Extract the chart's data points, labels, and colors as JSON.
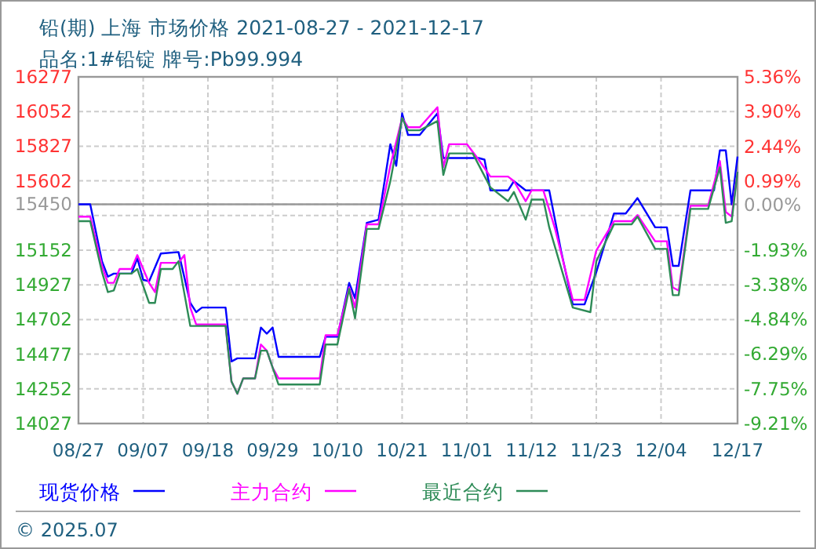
{
  "chart_data": {
    "type": "line",
    "title": "铅(期) 上海 市场价格 2021-08-27 - 2021-12-17",
    "subtitle": "品名:1#铅锭 牌号:Pb99.994",
    "xlim": [
      "2021-08-27",
      "2021-12-17"
    ],
    "xticks": [
      {
        "value": "2021-08-27",
        "label": "08/27"
      },
      {
        "value": "2021-09-07",
        "label": "09/07"
      },
      {
        "value": "2021-09-18",
        "label": "09/18"
      },
      {
        "value": "2021-09-29",
        "label": "09/29"
      },
      {
        "value": "2021-10-10",
        "label": "10/10"
      },
      {
        "value": "2021-10-21",
        "label": "10/21"
      },
      {
        "value": "2021-11-01",
        "label": "11/01"
      },
      {
        "value": "2021-11-12",
        "label": "11/12"
      },
      {
        "value": "2021-11-23",
        "label": "11/23"
      },
      {
        "value": "2021-12-04",
        "label": "12/04"
      },
      {
        "value": "2021-12-17",
        "label": "12/17"
      }
    ],
    "ylim": [
      14027,
      16277
    ],
    "yticks": [
      16277,
      16052,
      15827,
      15602,
      15450,
      {
        "value": 15377,
        "label": null
      },
      15152,
      14927,
      14702,
      14477,
      14252,
      14027
    ],
    "y2lim": [
      -9.21,
      5.36
    ],
    "y2ticks": [
      {
        "value": 5.36,
        "label": "5.36%"
      },
      {
        "value": 3.9,
        "label": "3.90%"
      },
      {
        "value": 2.44,
        "label": "2.44%"
      },
      {
        "value": 0.99,
        "label": "0.99%"
      },
      {
        "value": 0,
        "label": "0.00%"
      },
      {
        "value": -1.93,
        "label": "-1.93%"
      },
      {
        "value": -3.38,
        "label": "-3.38%"
      },
      {
        "value": -4.84,
        "label": "-4.84%"
      },
      {
        "value": -6.29,
        "label": "-6.29%"
      },
      {
        "value": -7.75,
        "label": "-7.75%"
      },
      {
        "value": -9.21,
        "label": "-9.21%"
      }
    ],
    "ref_lines": [
      {
        "axis": "y",
        "value": 15450,
        "color": "#999999"
      }
    ],
    "grid": true,
    "legend": "bottom",
    "marker": "none",
    "line_style": "solid",
    "annotations": [
      "© 2025.07"
    ],
    "series": [
      {
        "name": "现货价格",
        "color": "#0000ff",
        "x": [
          "2021-08-27",
          "2021-08-29",
          "2021-08-31",
          "2021-09-01",
          "2021-09-02",
          "2021-09-05",
          "2021-09-06",
          "2021-09-07",
          "2021-09-08",
          "2021-09-10",
          "2021-09-13",
          "2021-09-15",
          "2021-09-16",
          "2021-09-17",
          "2021-09-21",
          "2021-09-22",
          "2021-09-23",
          "2021-09-26",
          "2021-09-27",
          "2021-09-28",
          "2021-09-29",
          "2021-09-30",
          "2021-10-07",
          "2021-10-08",
          "2021-10-10",
          "2021-10-12",
          "2021-10-13",
          "2021-10-15",
          "2021-10-17",
          "2021-10-19",
          "2021-10-20",
          "2021-10-21",
          "2021-10-22",
          "2021-10-24",
          "2021-10-27",
          "2021-10-28",
          "2021-11-03",
          "2021-11-04",
          "2021-11-05",
          "2021-11-08",
          "2021-11-09",
          "2021-11-11",
          "2021-11-15",
          "2021-11-17",
          "2021-11-19",
          "2021-11-21",
          "2021-11-23",
          "2021-11-26",
          "2021-11-28",
          "2021-11-30",
          "2021-12-03",
          "2021-12-05",
          "2021-12-06",
          "2021-12-07",
          "2021-12-09",
          "2021-12-13",
          "2021-12-14",
          "2021-12-15",
          "2021-12-16",
          "2021-12-17"
        ],
        "values": [
          15450,
          15450,
          15080,
          14980,
          15000,
          15000,
          15100,
          14960,
          14950,
          15130,
          15140,
          14810,
          14750,
          14780,
          14780,
          14430,
          14450,
          14450,
          14650,
          14610,
          14650,
          14460,
          14460,
          14590,
          14590,
          14940,
          14840,
          15330,
          15350,
          15840,
          15700,
          16040,
          15900,
          15900,
          16040,
          15750,
          15750,
          15740,
          15540,
          15540,
          15600,
          15540,
          15540,
          15150,
          14800,
          14800,
          15010,
          15390,
          15390,
          15490,
          15300,
          15300,
          15050,
          15050,
          15540,
          15540,
          15800,
          15800,
          15450,
          15760
        ]
      },
      {
        "name": "主力合约",
        "color": "#ff00ff",
        "x": [
          "2021-08-27",
          "2021-08-29",
          "2021-08-31",
          "2021-09-01",
          "2021-09-02",
          "2021-09-03",
          "2021-09-05",
          "2021-09-06",
          "2021-09-08",
          "2021-09-09",
          "2021-09-10",
          "2021-09-13",
          "2021-09-14",
          "2021-09-15",
          "2021-09-16",
          "2021-09-21",
          "2021-09-22",
          "2021-09-23",
          "2021-09-24",
          "2021-09-26",
          "2021-09-27",
          "2021-09-28",
          "2021-09-29",
          "2021-09-30",
          "2021-10-07",
          "2021-10-08",
          "2021-10-10",
          "2021-10-12",
          "2021-10-13",
          "2021-10-15",
          "2021-10-17",
          "2021-10-19",
          "2021-10-21",
          "2021-10-22",
          "2021-10-24",
          "2021-10-27",
          "2021-10-28",
          "2021-10-29",
          "2021-11-01",
          "2021-11-03",
          "2021-11-05",
          "2021-11-08",
          "2021-11-09",
          "2021-11-11",
          "2021-11-12",
          "2021-11-14",
          "2021-11-16",
          "2021-11-19",
          "2021-11-21",
          "2021-11-23",
          "2021-11-26",
          "2021-11-29",
          "2021-11-30",
          "2021-12-03",
          "2021-12-05",
          "2021-12-06",
          "2021-12-07",
          "2021-12-09",
          "2021-12-12",
          "2021-12-14",
          "2021-12-15",
          "2021-12-16",
          "2021-12-17"
        ],
        "values": [
          15370,
          15370,
          15050,
          14940,
          14940,
          15030,
          15030,
          15120,
          14940,
          14880,
          15070,
          15070,
          15120,
          14780,
          14670,
          14670,
          14300,
          14220,
          14320,
          14320,
          14540,
          14500,
          14390,
          14320,
          14320,
          14600,
          14600,
          14910,
          14780,
          15320,
          15320,
          15700,
          16010,
          15950,
          15950,
          16080,
          15690,
          15840,
          15840,
          15740,
          15630,
          15630,
          15600,
          15470,
          15540,
          15540,
          15290,
          14830,
          14830,
          15150,
          15340,
          15340,
          15380,
          15210,
          15210,
          14910,
          14890,
          15440,
          15440,
          15730,
          15400,
          15370,
          15660
        ]
      },
      {
        "name": "最近合约",
        "color": "#2e8b57",
        "x": [
          "2021-08-27",
          "2021-08-29",
          "2021-08-31",
          "2021-09-01",
          "2021-09-02",
          "2021-09-03",
          "2021-09-05",
          "2021-09-06",
          "2021-09-08",
          "2021-09-09",
          "2021-09-10",
          "2021-09-12",
          "2021-09-13",
          "2021-09-15",
          "2021-09-21",
          "2021-09-22",
          "2021-09-23",
          "2021-09-24",
          "2021-09-26",
          "2021-09-27",
          "2021-09-28",
          "2021-09-30",
          "2021-10-07",
          "2021-10-08",
          "2021-10-10",
          "2021-10-12",
          "2021-10-13",
          "2021-10-15",
          "2021-10-17",
          "2021-10-19",
          "2021-10-21",
          "2021-10-22",
          "2021-10-24",
          "2021-10-27",
          "2021-10-28",
          "2021-10-29",
          "2021-11-02",
          "2021-11-05",
          "2021-11-08",
          "2021-11-09",
          "2021-11-11",
          "2021-11-12",
          "2021-11-14",
          "2021-11-15",
          "2021-11-19",
          "2021-11-22",
          "2021-11-23",
          "2021-11-26",
          "2021-11-29",
          "2021-11-30",
          "2021-12-03",
          "2021-12-05",
          "2021-12-06",
          "2021-12-07",
          "2021-12-09",
          "2021-12-12",
          "2021-12-14",
          "2021-12-15",
          "2021-12-16",
          "2021-12-17"
        ],
        "values": [
          15340,
          15340,
          15010,
          14880,
          14890,
          15000,
          15000,
          15030,
          14810,
          14810,
          15030,
          15030,
          15080,
          14660,
          14660,
          14300,
          14220,
          14320,
          14320,
          14500,
          14500,
          14280,
          14280,
          14540,
          14540,
          14900,
          14710,
          15290,
          15290,
          15600,
          16010,
          15930,
          15930,
          15990,
          15640,
          15780,
          15780,
          15560,
          15470,
          15530,
          15350,
          15480,
          15480,
          15300,
          14780,
          14750,
          15080,
          15320,
          15320,
          15370,
          15160,
          15160,
          14860,
          14860,
          15420,
          15420,
          15690,
          15330,
          15340,
          15660
        ]
      }
    ]
  }
}
